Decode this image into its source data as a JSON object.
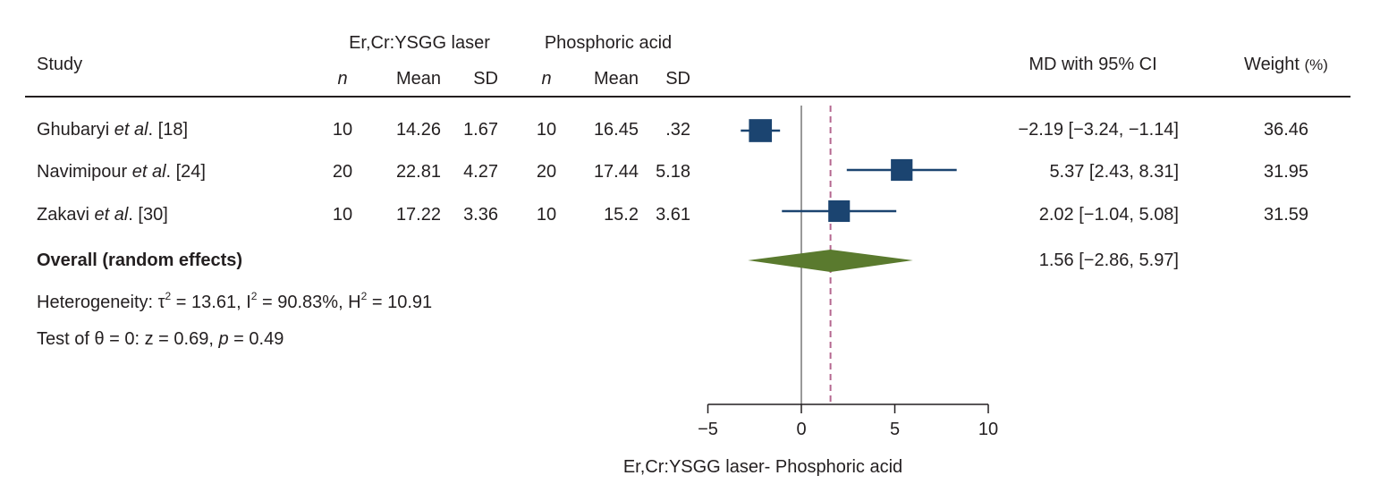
{
  "header": {
    "study": "Study",
    "group1": "Er,Cr:YSGG laser",
    "group2": "Phosphoric acid",
    "n": "n",
    "mean": "Mean",
    "sd": "SD",
    "md": "MD with 95% CI",
    "weight": "Weight",
    "weight_unit": "(%)"
  },
  "studies": [
    {
      "author": "Ghubaryi ",
      "etal": "et al",
      "ref": ". [18]",
      "n1": "10",
      "mean1": "14.26",
      "sd1": "1.67",
      "n2": "10",
      "mean2": "16.45",
      "sd2": ".32",
      "ci": "−2.19 [−3.24, −1.14]",
      "weight": "36.46"
    },
    {
      "author": "Navimipour ",
      "etal": "et al",
      "ref": ". [24]",
      "n1": "20",
      "mean1": "22.81",
      "sd1": "4.27",
      "n2": "20",
      "mean2": "17.44",
      "sd2": "5.18",
      "ci": "5.37 [2.43, 8.31]",
      "weight": "31.95"
    },
    {
      "author": "Zakavi ",
      "etal": "et al",
      "ref": ". [30]",
      "n1": "10",
      "mean1": "17.22",
      "sd1": "3.36",
      "n2": "10",
      "mean2": "15.2",
      "sd2": "3.61",
      "ci": "2.02 [−1.04, 5.08]",
      "weight": "31.59"
    }
  ],
  "overall": {
    "label": "Overall (random effects)",
    "ci": "1.56 [−2.86, 5.97]"
  },
  "heterogeneity": {
    "prefix": "Heterogeneity: τ",
    "sup": "2",
    "tau": " = 13.61, I",
    "i2": " = 90.83%, H",
    "h2": " = 10.91"
  },
  "test": {
    "prefix": "Test of θ = 0: z = 0.69, ",
    "p": "p",
    "suffix": " = 0.49"
  },
  "chart_data": {
    "type": "forest",
    "xlabel": "Er,Cr:YSGG laser- Phosphoric acid",
    "xlim": [
      -5,
      10
    ],
    "ticks": [
      "−5",
      "0",
      "5",
      "10"
    ],
    "tick_values": [
      -5,
      0,
      5,
      10
    ],
    "points": [
      {
        "md": -2.19,
        "lo": -3.24,
        "hi": -1.14,
        "weight": 36.46
      },
      {
        "md": 5.37,
        "lo": 2.43,
        "hi": 8.31,
        "weight": 31.95
      },
      {
        "md": 2.02,
        "lo": -1.04,
        "hi": 5.08,
        "weight": 31.59
      }
    ],
    "overall": {
      "md": 1.56,
      "lo": -2.86,
      "hi": 5.97
    },
    "colors": {
      "square": "#1b4470",
      "diamond": "#5a7a2e",
      "ref": "#999999",
      "dash": "#b5678f"
    }
  }
}
